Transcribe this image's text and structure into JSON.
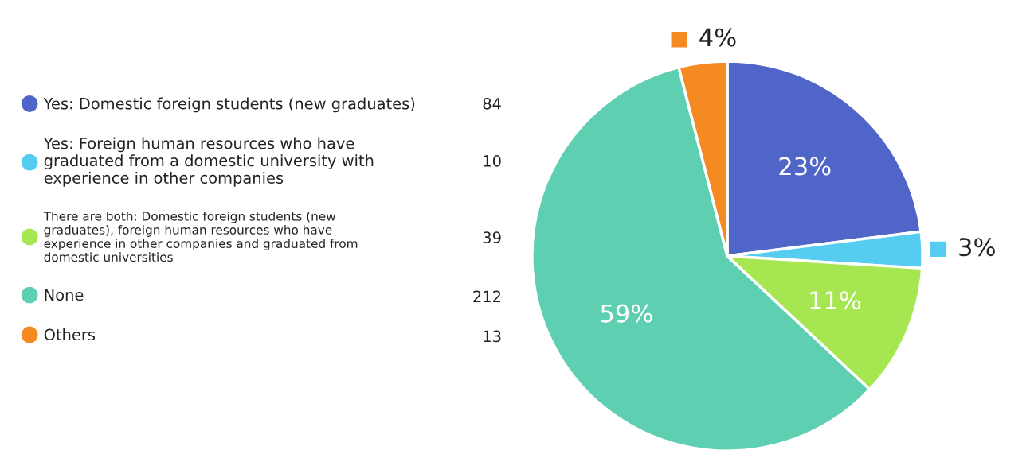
{
  "chart_data": {
    "type": "pie",
    "categories": [
      "Yes: Domestic foreign students (new graduates)",
      "Yes: Foreign human resources who have\ngraduated from a domestic university with\nexperience in other companies",
      "There are both: Domestic foreign students (new\ngraduates), foreign human resources who have\nexperience in other companies and graduated from\ndomestic universities",
      "None",
      "Others"
    ],
    "values": [
      23,
      3,
      11,
      59,
      4
    ],
    "value_labels": [
      "23%",
      "3%",
      "11%",
      "59%",
      "4%"
    ],
    "colors": [
      "#5065c8",
      "#56cdf0",
      "#a6e651",
      "#5ecfb1",
      "#f58a23"
    ],
    "annotations": [
      "84",
      "10",
      "39",
      "212",
      "13"
    ],
    "legend": "left"
  }
}
